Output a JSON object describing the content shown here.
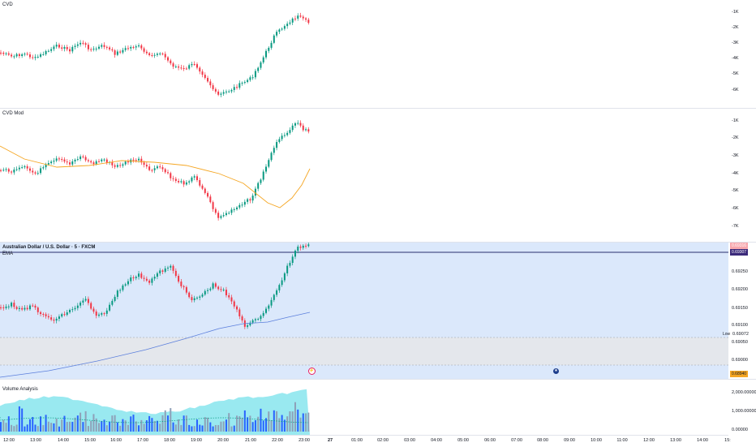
{
  "panes": {
    "cvd": {
      "title": "CVD",
      "ticks": [
        "-1K",
        "-2K",
        "-3K",
        "-4K",
        "-5K",
        "-6K"
      ]
    },
    "cvd_mod": {
      "title": "CVD Mod",
      "ticks": [
        "-1K",
        "-2K",
        "-3K",
        "-4K",
        "-5K",
        "-6K",
        "-7K"
      ]
    },
    "price": {
      "title": "Australian Dollar / U.S. Dollar · 5 · FXCM",
      "ema_label": "EMA",
      "ticks": [
        "0.69250",
        "0.69200",
        "0.69150",
        "0.69100",
        "0.69050",
        "0.69000"
      ],
      "current_price": "0.69307",
      "low_label": "Low",
      "low_price": "0.69072",
      "bottom_price": "0.68940",
      "top_badge": "0.69316"
    },
    "volume": {
      "title": "Volume Analysis",
      "ticks": [
        "2,000.00000",
        "1,000.00000",
        "0.00000"
      ]
    }
  },
  "time_axis": [
    "12:00",
    "13:00",
    "14:00",
    "15:00",
    "16:00",
    "17:00",
    "18:00",
    "19:00",
    "20:00",
    "21:00",
    "22:00",
    "23:00",
    "27",
    "01:00",
    "02:00",
    "03:00",
    "04:00",
    "05:00",
    "06:00",
    "07:00",
    "08:00",
    "09:00",
    "10:00",
    "11:00",
    "12:00",
    "13:00",
    "14:00",
    "15:"
  ],
  "events": {
    "flash_icon": "flash-event-icon",
    "flag_icon": "australia-flag-icon"
  },
  "colors": {
    "up": "#089981",
    "down": "#f23645",
    "ema": "#5b7fdc",
    "cvd_ma": "#f5a623",
    "zone": "#dbe8fb",
    "volume_area": "#7fe3ec",
    "volume_bar": "#2962ff"
  }
}
